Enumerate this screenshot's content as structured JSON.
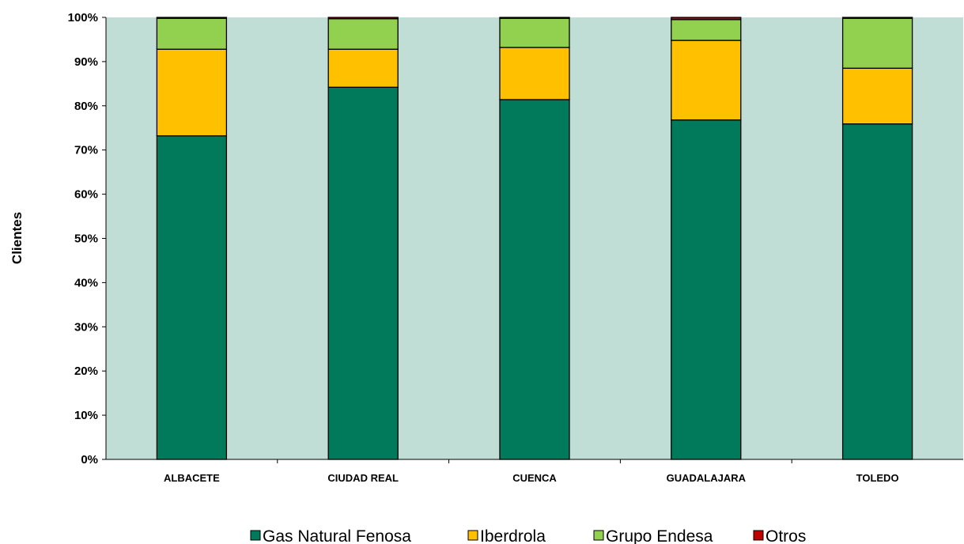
{
  "chart_data": {
    "type": "bar",
    "stacked": true,
    "title": "",
    "xlabel": "",
    "ylabel": "Clientes",
    "ylim": [
      0,
      100
    ],
    "y_unit": "%",
    "yticks": [
      "0%",
      "10%",
      "20%",
      "30%",
      "40%",
      "50%",
      "60%",
      "70%",
      "80%",
      "90%",
      "100%"
    ],
    "categories": [
      "ALBACETE",
      "CIUDAD REAL",
      "CUENCA",
      "GUADALAJARA",
      "TOLEDO"
    ],
    "series": [
      {
        "name": "Gas Natural Fenosa",
        "color": "#007a5a",
        "values": [
          73.2,
          84.2,
          81.4,
          76.8,
          75.9
        ]
      },
      {
        "name": "Iberdrola",
        "color": "#ffc000",
        "values": [
          19.6,
          8.6,
          11.8,
          18.0,
          12.6
        ]
      },
      {
        "name": "Grupo Endesa",
        "color": "#92d050",
        "values": [
          7.0,
          6.9,
          6.6,
          4.7,
          11.3
        ]
      },
      {
        "name": "Otros",
        "color": "#c00000",
        "values": [
          0.2,
          0.3,
          0.2,
          0.5,
          0.2
        ]
      }
    ],
    "grid": false,
    "plot_background": "#c0ddd6",
    "legend_position": "bottom"
  }
}
